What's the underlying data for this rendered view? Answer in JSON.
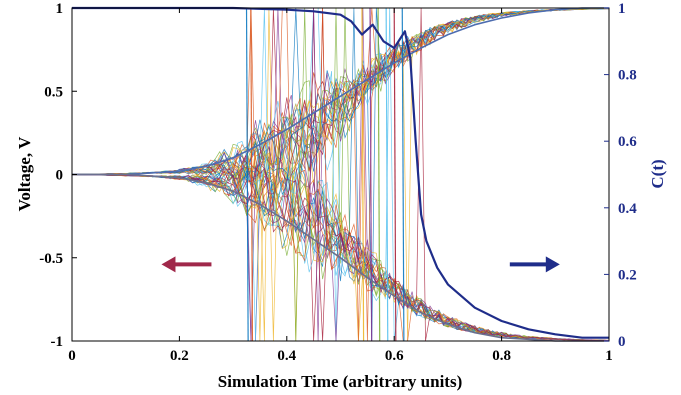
{
  "chart_data": {
    "type": "line",
    "xlabel": "Simulation Time (arbitrary units)",
    "ylabel": "Voltage, V",
    "y2label": "C(t)",
    "xlim": [
      0,
      1
    ],
    "ylim": [
      -1,
      1
    ],
    "y2lim": [
      0,
      1
    ],
    "x_ticks": [
      "0",
      "0.2",
      "0.4",
      "0.6",
      "0.8",
      "1"
    ],
    "y_ticks": [
      "1",
      "0.5",
      "0",
      "-0.5",
      "-1"
    ],
    "y2_ticks": [
      "1",
      "0.8",
      "0.6",
      "0.4",
      "0.2",
      "0"
    ],
    "grid": false,
    "annotations": [
      {
        "kind": "arrow",
        "direction": "left",
        "axis": "left",
        "x": 0.215,
        "y": -0.54,
        "color": "#a0284a"
      },
      {
        "kind": "arrow",
        "direction": "right",
        "axis": "right",
        "x": 0.86,
        "y": 0.23,
        "color": "#1f2d8a"
      }
    ],
    "series": [
      {
        "axis": "left",
        "color": "#4e6db0",
        "x": [
          0,
          0.1,
          0.2,
          0.25,
          0.3,
          0.35,
          0.4,
          0.45,
          0.5,
          0.55,
          0.6,
          0.65,
          0.7,
          0.75,
          0.8,
          0.85,
          0.9,
          0.95,
          1.0
        ],
        "y": [
          0,
          0.0,
          0.02,
          0.05,
          0.1,
          0.18,
          0.27,
          0.37,
          0.47,
          0.57,
          0.67,
          0.76,
          0.84,
          0.9,
          0.94,
          0.97,
          0.99,
          1.0,
          1.0
        ]
      },
      {
        "axis": "left",
        "color": "#6a6f8f",
        "x": [
          0,
          0.1,
          0.2,
          0.25,
          0.3,
          0.35,
          0.4,
          0.45,
          0.5,
          0.55,
          0.6,
          0.65,
          0.7,
          0.75,
          0.8,
          0.85,
          0.9,
          0.95,
          1.0
        ],
        "y": [
          0,
          0.0,
          -0.02,
          -0.05,
          -0.1,
          -0.18,
          -0.28,
          -0.39,
          -0.5,
          -0.62,
          -0.73,
          -0.83,
          -0.9,
          -0.95,
          -0.98,
          -0.99,
          -1.0,
          -1.0,
          -1.0
        ]
      },
      {
        "axis": "right",
        "color": "#1f2d8a",
        "x": [
          0,
          0.1,
          0.2,
          0.3,
          0.4,
          0.45,
          0.5,
          0.52,
          0.54,
          0.56,
          0.58,
          0.6,
          0.62,
          0.63,
          0.64,
          0.65,
          0.66,
          0.68,
          0.7,
          0.75,
          0.8,
          0.85,
          0.9,
          0.95,
          1.0
        ],
        "y": [
          1.0,
          1.0,
          1.0,
          1.0,
          0.995,
          0.99,
          0.98,
          0.96,
          0.92,
          0.95,
          0.9,
          0.88,
          0.93,
          0.85,
          0.6,
          0.38,
          0.3,
          0.22,
          0.17,
          0.1,
          0.06,
          0.035,
          0.02,
          0.01,
          0.01
        ]
      }
    ]
  }
}
